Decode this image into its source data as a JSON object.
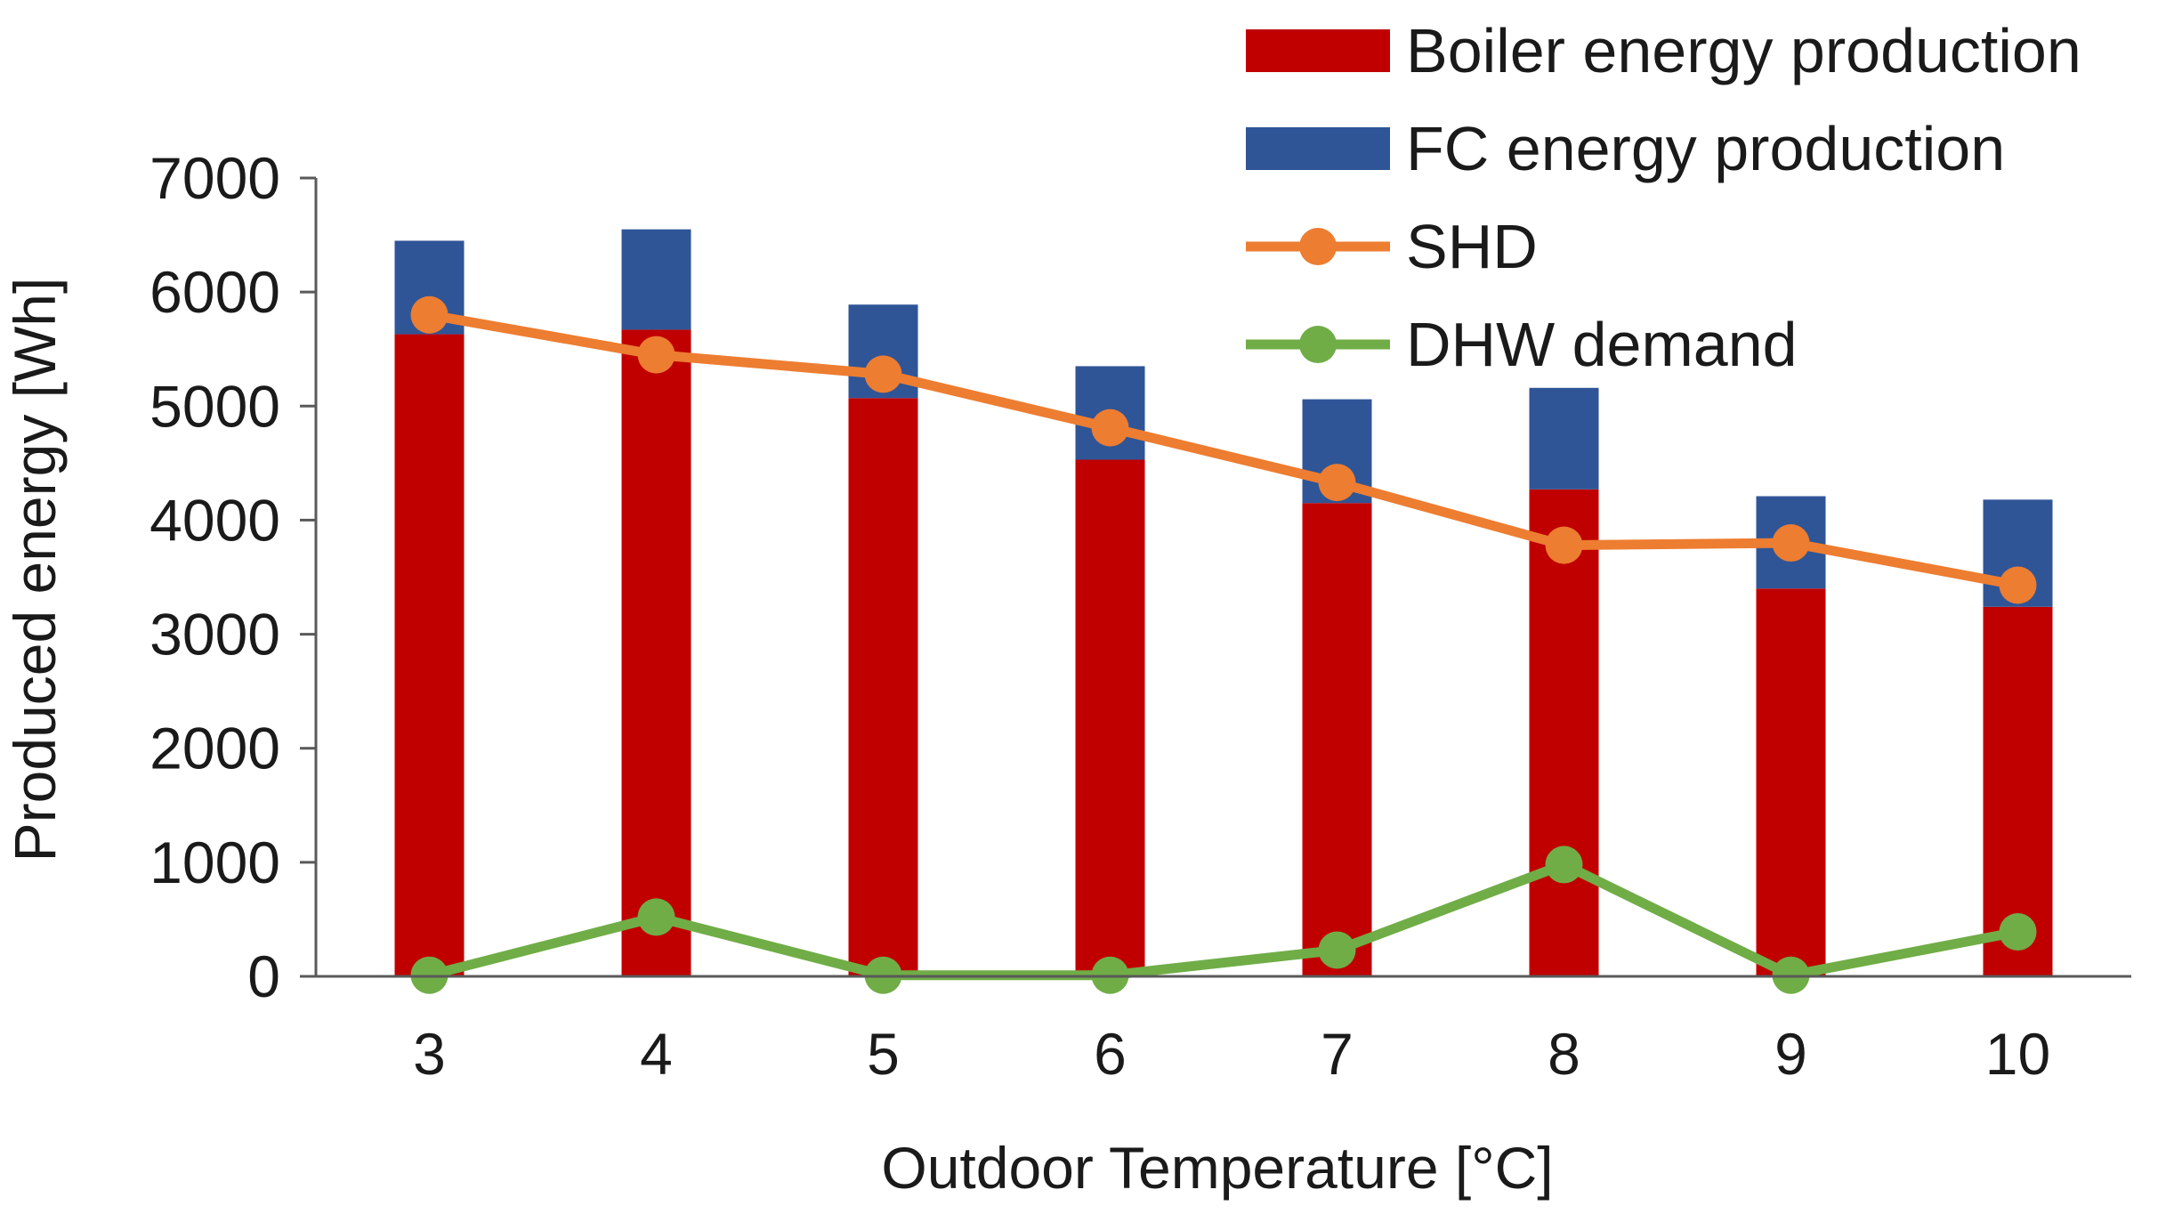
{
  "chart_data": {
    "type": "bar",
    "stacked": true,
    "title": "",
    "xlabel": "Outdoor Temperature [°C]",
    "ylabel": "Produced energy [Wh]",
    "ylim": [
      0,
      7000
    ],
    "yticks": [
      "0",
      "1000",
      "2000",
      "3000",
      "4000",
      "5000",
      "6000",
      "7000"
    ],
    "categories": [
      "3",
      "4",
      "5",
      "6",
      "7",
      "8",
      "9",
      "10"
    ],
    "series": [
      {
        "name": "Boiler energy production",
        "kind": "bar",
        "color": "#C00000",
        "values": [
          5630,
          5670,
          5070,
          4530,
          4150,
          4270,
          3400,
          3240
        ]
      },
      {
        "name": "FC energy production",
        "kind": "bar",
        "color": "#2F5597",
        "values": [
          820,
          880,
          820,
          820,
          910,
          890,
          810,
          940
        ]
      },
      {
        "name": "SHD",
        "kind": "line",
        "color": "#ED7D31",
        "values": [
          5800,
          5450,
          5280,
          4810,
          4330,
          3780,
          3800,
          3430
        ]
      },
      {
        "name": "DHW demand",
        "kind": "line",
        "color": "#70AD47",
        "values": [
          10,
          520,
          10,
          10,
          230,
          980,
          10,
          390
        ]
      }
    ],
    "legend_position": "top-right"
  }
}
